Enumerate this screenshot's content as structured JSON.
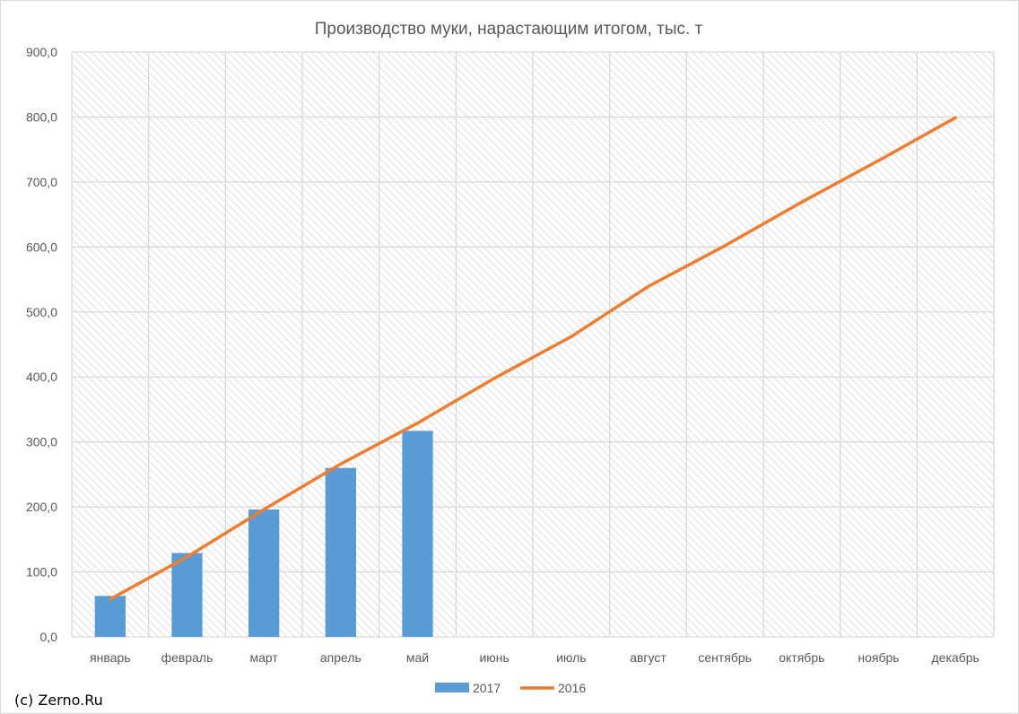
{
  "chart_data": {
    "type": "bar",
    "title": "Производство муки, нарастающим итогом, тыс. т",
    "xlabel": "",
    "ylabel": "",
    "ylim": [
      0,
      900
    ],
    "y_ticks": [
      "0,0",
      "100,0",
      "200,0",
      "300,0",
      "400,0",
      "500,0",
      "600,0",
      "700,0",
      "800,0",
      "900,0"
    ],
    "grid": true,
    "legend_position": "bottom",
    "categories": [
      "январь",
      "февраль",
      "март",
      "апрель",
      "май",
      "июнь",
      "июль",
      "август",
      "сентябрь",
      "октябрь",
      "ноябрь",
      "декабрь"
    ],
    "series": [
      {
        "name": "2017",
        "type": "bar",
        "color": "#5b9bd5",
        "values": [
          63,
          129,
          196,
          260,
          317,
          null,
          null,
          null,
          null,
          null,
          null,
          null
        ]
      },
      {
        "name": "2016",
        "type": "line",
        "color": "#ed7d31",
        "values": [
          58,
          123,
          196,
          266,
          329,
          398,
          462,
          539,
          602,
          669,
          733,
          799
        ]
      }
    ]
  },
  "source_note": "(c) Zerno.Ru"
}
